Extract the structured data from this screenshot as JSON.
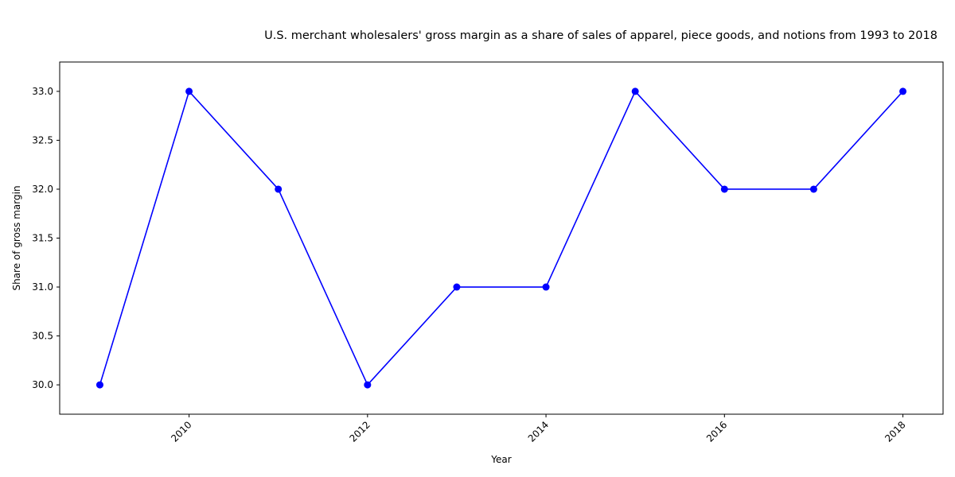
{
  "chart_data": {
    "type": "line",
    "title": "U.S. merchant wholesalers' gross margin as a share of sales of apparel, piece goods, and notions from 1993 to 2018",
    "xlabel": "Year",
    "ylabel": "Share of gross margin",
    "x": [
      2009,
      2010,
      2011,
      2012,
      2013,
      2014,
      2015,
      2016,
      2017,
      2018
    ],
    "series": [
      {
        "name": "Share of gross margin",
        "values": [
          30,
          33,
          32,
          30,
          31,
          31,
          33,
          32,
          32,
          33
        ],
        "color": "#0000ff",
        "marker": "circle"
      }
    ],
    "xlim": [
      2008.55,
      2018.45
    ],
    "ylim": [
      29.7,
      33.3
    ],
    "x_ticks": [
      2010,
      2012,
      2014,
      2016,
      2018
    ],
    "x_tick_labels": [
      "2010",
      "2012",
      "2014",
      "2016",
      "2018"
    ],
    "y_ticks": [
      30.0,
      30.5,
      31.0,
      31.5,
      32.0,
      32.5,
      33.0
    ],
    "y_tick_labels": [
      "30.0",
      "30.5",
      "31.0",
      "31.5",
      "32.0",
      "32.5",
      "33.0"
    ],
    "grid": false,
    "legend": "none"
  }
}
